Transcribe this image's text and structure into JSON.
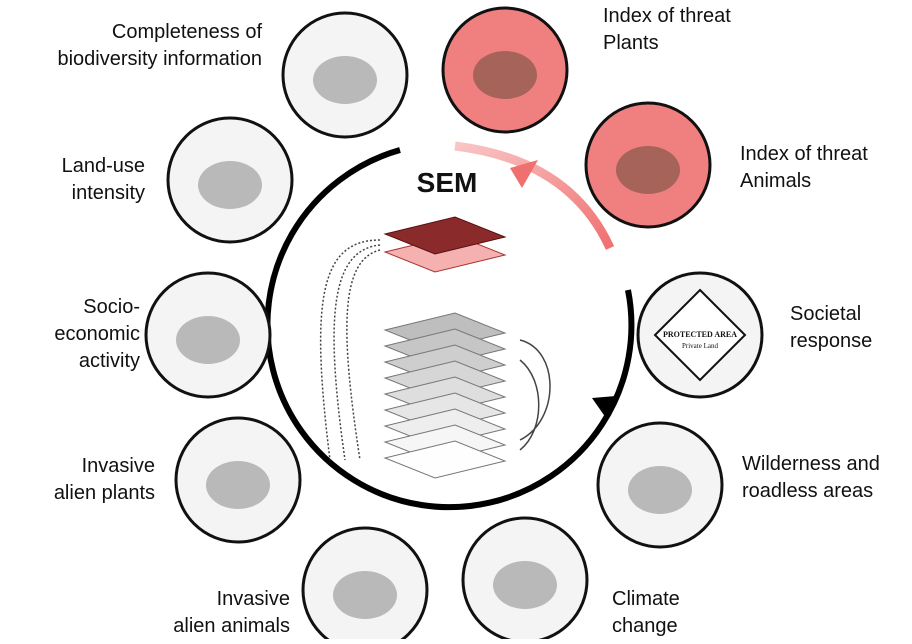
{
  "center": {
    "title": "SEM"
  },
  "nodes": [
    {
      "label": [
        "Completeness of",
        "biodiversity information"
      ]
    },
    {
      "label": [
        "Index of threat",
        "Plants"
      ]
    },
    {
      "label": [
        "Index of threat",
        "Animals"
      ]
    },
    {
      "label": [
        "Societal",
        "response"
      ]
    },
    {
      "label": [
        "Wilderness and",
        "roadless areas"
      ]
    },
    {
      "label": [
        "Climate",
        "change"
      ]
    },
    {
      "label": [
        "Invasive",
        "alien animals"
      ]
    },
    {
      "label": [
        "Invasive",
        "alien plants"
      ]
    },
    {
      "label": [
        "Socio-",
        "economic",
        "activity"
      ]
    },
    {
      "label": [
        "Land-use",
        "intensity"
      ]
    }
  ],
  "sign": {
    "title": "PROTECTED AREA",
    "subtitle": "Private Land"
  }
}
